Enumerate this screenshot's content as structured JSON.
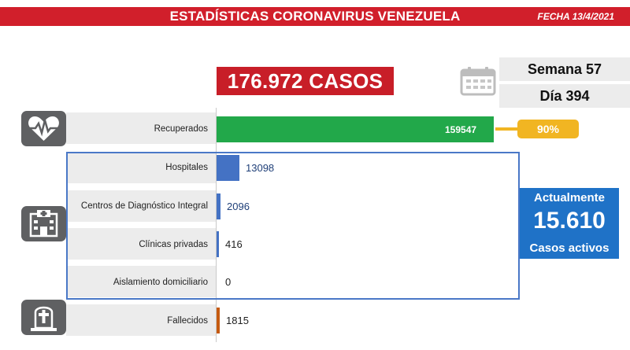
{
  "header": {
    "title": "ESTADÍSTICAS CORONAVIRUS VENEZUELA",
    "date": "FECHA 13/4/2021"
  },
  "summary": {
    "total_cases": "176.972 CASOS",
    "week": "Semana 57",
    "day": "Día 394",
    "recovered_pct": "90%"
  },
  "active": {
    "label_top": "Actualmente",
    "value": "15.610",
    "label_bottom": "Casos activos"
  },
  "icons": {
    "recovered": "heart-pulse-icon",
    "facilities": "hospital-building-icon",
    "deceased": "tombstone-cross-icon",
    "calendar": "calendar-icon"
  },
  "colors": {
    "header": "#d11f2b",
    "recovered_bar": "#22a84a",
    "hospital_bar": "#4472c4",
    "deceased_bar": "#c55a11",
    "badge": "#f1b522",
    "active_box": "#1f72c7"
  },
  "chart_data": {
    "type": "bar",
    "orientation": "horizontal",
    "categories": [
      "Recuperados",
      "Hospitales",
      "Centros de Diagnóstico Integral",
      "Clínicas privadas",
      "Aislamiento domiciliario",
      "Fallecidos"
    ],
    "values": [
      159547,
      13098,
      2096,
      416,
      0,
      1815
    ],
    "value_labels": [
      "159547",
      "13098",
      "2096",
      "416",
      "0",
      "1815"
    ],
    "xlim": [
      0,
      159547
    ],
    "grid": false
  }
}
